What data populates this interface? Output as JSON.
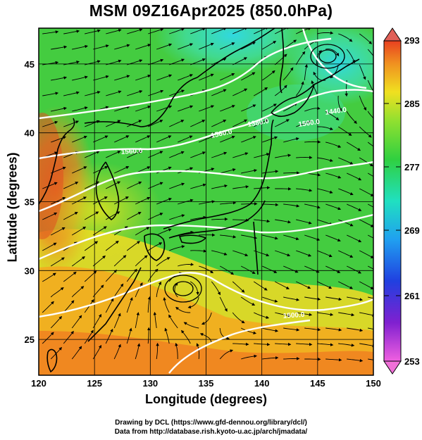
{
  "title": "MSM 09Z16Apr2025 (850.0hPa)",
  "x_axis_label": "Longitude (degrees)",
  "y_axis_label": "Latitude  (degrees)",
  "footer_line_1": "Drawing by DCL (https://www.gfd-dennou.org/library/dcl/)",
  "footer_line_2": "Data from http://database.rish.kyoto-u.ac.jp/arch/jmadata/",
  "x_ticks": [
    {
      "value": 120,
      "label": "120"
    },
    {
      "value": 125,
      "label": "125"
    },
    {
      "value": 130,
      "label": "130"
    },
    {
      "value": 135,
      "label": "135"
    },
    {
      "value": 140,
      "label": "140"
    },
    {
      "value": 145,
      "label": "145"
    },
    {
      "value": 150,
      "label": "150"
    }
  ],
  "y_ticks": [
    {
      "value": 25,
      "label": "25"
    },
    {
      "value": 30,
      "label": "30"
    },
    {
      "value": 35,
      "label": "35"
    },
    {
      "value": 40,
      "label": "40"
    },
    {
      "value": 45,
      "label": "45"
    }
  ],
  "map_extent": {
    "lon_min": 120,
    "lon_max": 150,
    "lat_min": 22.4,
    "lat_max": 47.6
  },
  "colorbar": {
    "labels": [
      "293",
      "285",
      "277",
      "269",
      "261",
      "253"
    ],
    "min": 253,
    "max": 293,
    "over_color": "#e06058",
    "under_color": "#f070d8"
  },
  "contour_labels": [
    "1440.0",
    "1380.0",
    "1560.0",
    "1500.0",
    "1560.0",
    "1500.0"
  ],
  "colors": {
    "warm_orange": "#f08020",
    "yellow": "#e8e020",
    "green": "#30c830",
    "cyan": "#30d8d8",
    "blue": "#2040e0",
    "magenta": "#e020e0",
    "red": "#e03020"
  },
  "icons": [
    "streamline-arrows",
    "geopotential-contours",
    "coastline",
    "cyclone-center"
  ]
}
